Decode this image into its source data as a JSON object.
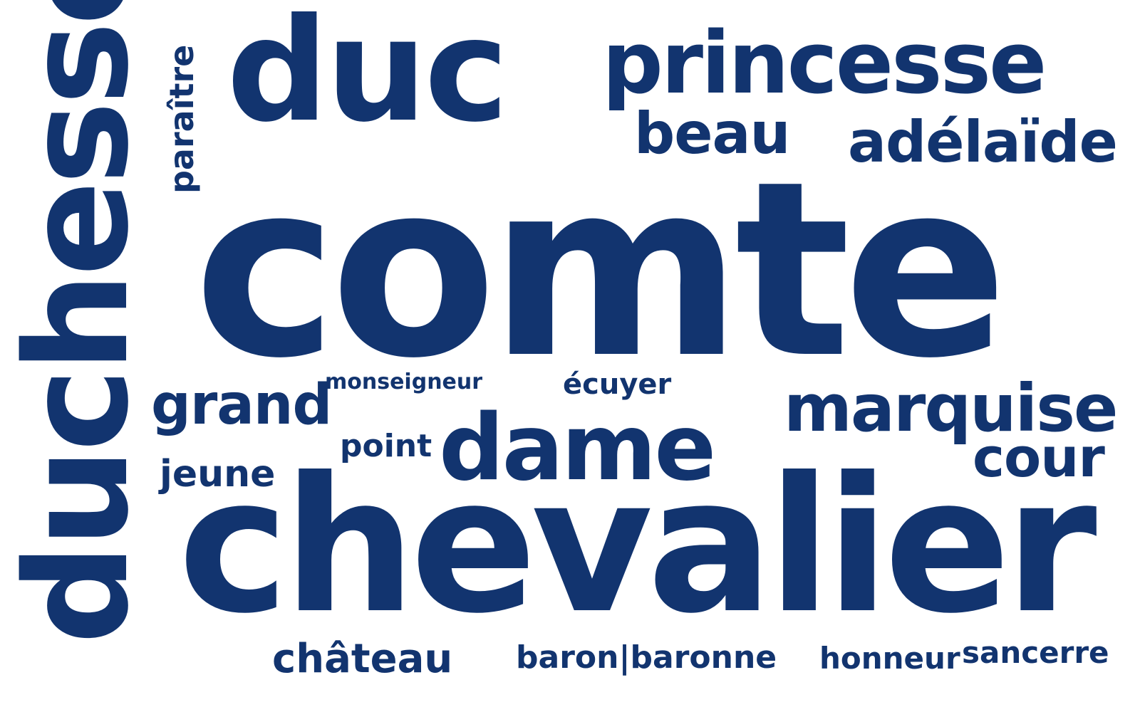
{
  "palette": {
    "word_color": "#12346f",
    "background": "#ffffff"
  },
  "words": {
    "comte": "comte",
    "chevalier": "chevalier",
    "duchesse": "duchesse",
    "duc": "duc",
    "princesse": "princesse",
    "beau": "beau",
    "adelaide": "adélaïde",
    "paraitre": "paraître",
    "grand": "grand",
    "monseigneur": "monseigneur",
    "ecuyer": "écuyer",
    "marquise": "marquise",
    "point": "point",
    "dame": "dame",
    "cour": "cour",
    "jeune": "jeune",
    "chateau": "château",
    "baron_baronne": "baron|baronne",
    "honneur": "honneur",
    "sancerre": "sancerre"
  }
}
